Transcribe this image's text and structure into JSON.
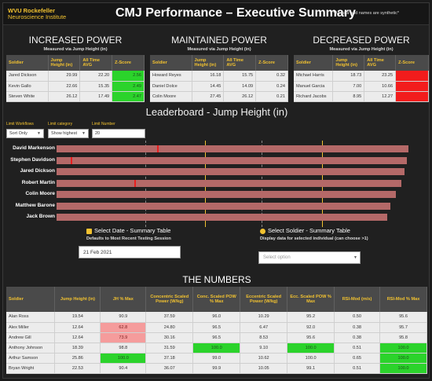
{
  "header": {
    "logo_line1": "WVU Rockefeller",
    "logo_line2": "Neuroscience Institute",
    "title": "CMJ Performance – Executive Summary",
    "disclaimer": "*All data and names are synthetic*"
  },
  "increased": {
    "title": "INCREASED POWER",
    "subtitle": "Measured via Jump Height (in)",
    "columns": [
      "Soldier",
      "Jump Height (in)",
      "All Time AVG",
      "Z-Score"
    ],
    "rows": [
      {
        "name": "Jared Dickson",
        "jh": "29.99",
        "avg": "22.20",
        "z": "2.56"
      },
      {
        "name": "Kevin Gallo",
        "jh": "22.66",
        "avg": "15.35",
        "z": "2.49"
      },
      {
        "name": "Steven White",
        "jh": "26.12",
        "avg": "17.49",
        "z": "2.47"
      }
    ]
  },
  "maintained": {
    "title": "MAINTAINED POWER",
    "subtitle": "Measured via Jump Height (in)",
    "columns": [
      "Soldier",
      "Jump Height (in)",
      "All Time AVG",
      "Z-Score"
    ],
    "rows": [
      {
        "name": "Howard Reyes",
        "jh": "16.18",
        "avg": "15.75",
        "z": "0.32"
      },
      {
        "name": "Daniel Dolce",
        "jh": "14.45",
        "avg": "14.09",
        "z": "0.24"
      },
      {
        "name": "Colin Moore",
        "jh": "27.45",
        "avg": "26.12",
        "z": "0.21"
      }
    ]
  },
  "decreased": {
    "title": "DECREASED POWER",
    "subtitle": "Measured via Jump Height (in)",
    "columns": [
      "Soldier",
      "Jump Height (in)",
      "All Time AVG",
      "Z-Score"
    ],
    "rows": [
      {
        "name": "Michael Harris",
        "jh": "18.73",
        "avg": "23.25",
        "z": ""
      },
      {
        "name": "Manuel Garcia",
        "jh": "7.00",
        "avg": "10.66",
        "z": ""
      },
      {
        "name": "Richard Jacobs",
        "jh": "8.95",
        "avg": "12.27",
        "z": ""
      }
    ]
  },
  "leaderboard": {
    "title": "Leaderboard - Jump Height (in)",
    "filters": [
      {
        "label": "Limit Workflows",
        "value": "Sort Only"
      },
      {
        "label": "Limit category",
        "value": "Show highest"
      },
      {
        "label": "Limit Number",
        "value": "20"
      }
    ],
    "athletes": [
      "David Markenson",
      "Stephen Davidson",
      "Jared Dickson",
      "Robert Martin",
      "Colin Moore",
      "Matthew Barone",
      "Jack Brown"
    ],
    "bar_fraction": [
      0.995,
      0.99,
      0.985,
      0.975,
      0.96,
      0.945,
      0.935
    ],
    "mark_fraction": [
      0.285,
      0.04,
      0.0,
      0.22,
      0.0,
      0.0,
      0.0
    ]
  },
  "select_date": {
    "title": "Select Date - Summary Table",
    "subtitle": "Defaults to Most Recent Testing Session",
    "value": "21 Feb 2021"
  },
  "select_soldier": {
    "title": "Select Soldier - Summary Table",
    "subtitle": "Display data for selected individual (can choose >1)",
    "placeholder": "Select option"
  },
  "numbers": {
    "title": "THE NUMBERS",
    "columns": [
      "Soldier",
      "Jump Height (in)",
      "JH % Max",
      "Concentric Scaled Power (W/kg)",
      "Conc. Scaled POW % Max",
      "Eccentric Scaled Power (W/kg)",
      "Ecc. Scaled POW % Max",
      "RSI-Mod (m/s)",
      "RSI-Mod % Max"
    ],
    "rows": [
      [
        "Alan Ross",
        "19.54",
        "90.9",
        "37.59",
        "96.0",
        "10.29",
        "95.2",
        "0.50",
        "95.6"
      ],
      [
        "Alex Miller",
        "12.64",
        "62.8",
        "24.80",
        "96.5",
        "6.47",
        "92.0",
        "0.38",
        "95.7"
      ],
      [
        "Andrew Gill",
        "12.64",
        "73.9",
        "30.16",
        "96.5",
        "8.53",
        "95.6",
        "0.38",
        "95.8"
      ],
      [
        "Anthony Johnson",
        "18.39",
        "98.8",
        "31.59",
        "100.0",
        "9.10",
        "100.0",
        "0.51",
        "100.0"
      ],
      [
        "Arthur Samson",
        "25.86",
        "100.0",
        "37.18",
        "99.0",
        "10.62",
        "100.0",
        "0.65",
        "100.0"
      ],
      [
        "Bryan Wright",
        "22.53",
        "90.4",
        "36.07",
        "99.9",
        "10.05",
        "99.1",
        "0.51",
        "100.0"
      ]
    ]
  }
}
